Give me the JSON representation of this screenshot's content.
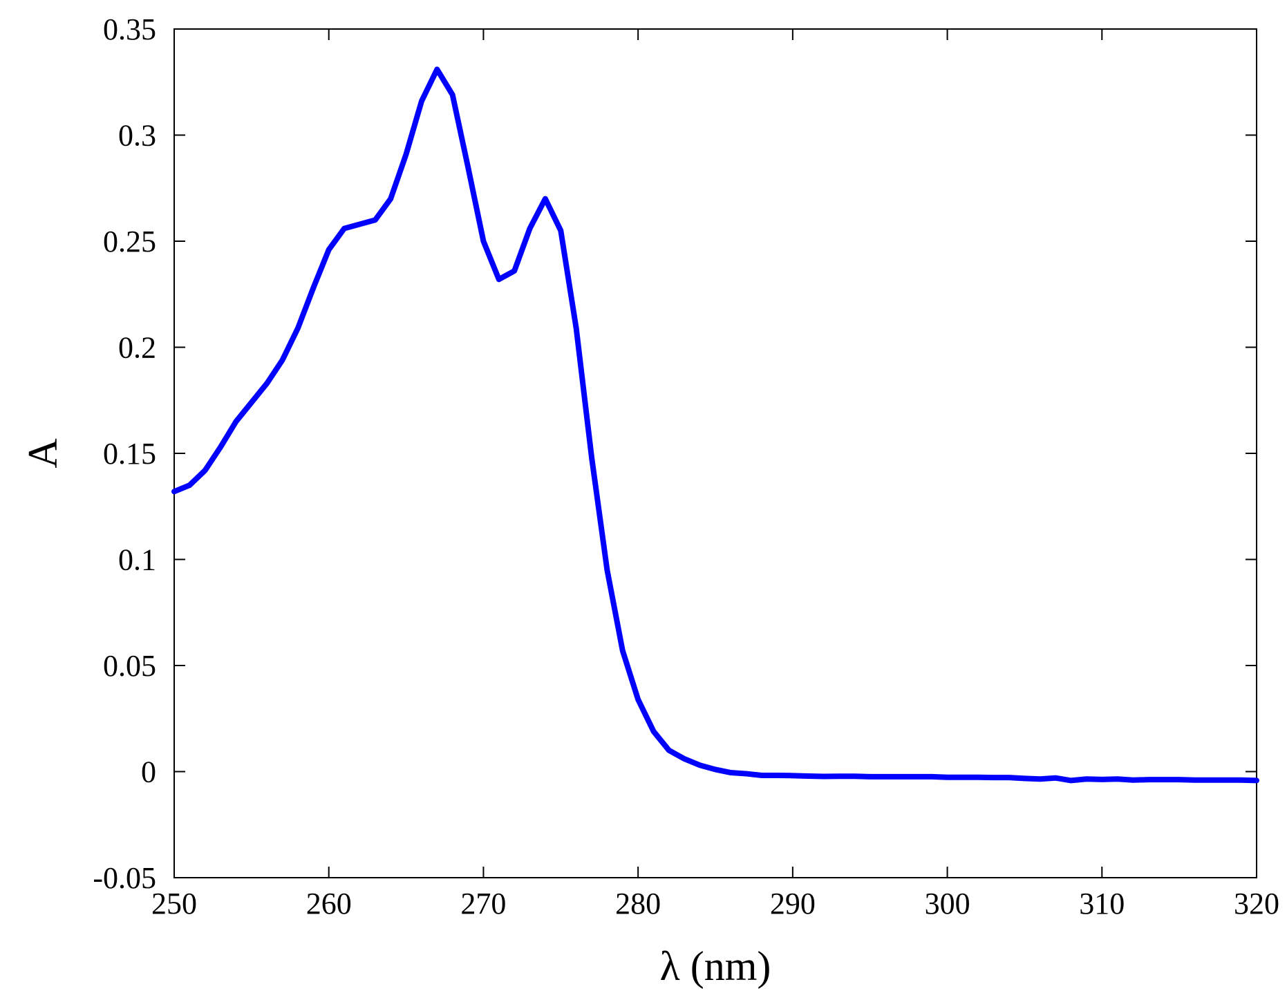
{
  "chart_data": {
    "type": "line",
    "xlabel": "λ (nm)",
    "ylabel": "A",
    "xlim": [
      250,
      320
    ],
    "ylim": [
      -0.05,
      0.35
    ],
    "xticks": [
      250,
      260,
      270,
      280,
      290,
      300,
      310,
      320
    ],
    "yticks": [
      -0.05,
      0,
      0.05,
      0.1,
      0.15,
      0.2,
      0.25,
      0.3,
      0.35
    ],
    "xtick_labels": [
      "250",
      "260",
      "270",
      "280",
      "290",
      "300",
      "310",
      "320"
    ],
    "ytick_labels": [
      "-0.05",
      "0",
      "0.05",
      "0.1",
      "0.15",
      "0.2",
      "0.25",
      "0.3",
      "0.35"
    ],
    "grid": false,
    "legend": "none",
    "line_color": "#0000ff",
    "series": [
      {
        "x": [
          250,
          251,
          252,
          253,
          254,
          255,
          256,
          257,
          258,
          259,
          260,
          261,
          262,
          263,
          264,
          265,
          266,
          267,
          268,
          269,
          270,
          271,
          272,
          273,
          274,
          275,
          276,
          277,
          278,
          279,
          280,
          281,
          282,
          283,
          284,
          285,
          286,
          287,
          288,
          289,
          290,
          291,
          292,
          293,
          294,
          295,
          296,
          297,
          298,
          299,
          300,
          301,
          302,
          303,
          304,
          305,
          306,
          307,
          308,
          309,
          310,
          311,
          312,
          313,
          314,
          315,
          316,
          317,
          318,
          319,
          320
        ],
        "values": [
          0.132,
          0.135,
          0.142,
          0.153,
          0.165,
          0.174,
          0.183,
          0.194,
          0.209,
          0.228,
          0.246,
          0.256,
          0.258,
          0.26,
          0.27,
          0.291,
          0.316,
          0.331,
          0.319,
          0.285,
          0.25,
          0.232,
          0.236,
          0.256,
          0.27,
          0.255,
          0.209,
          0.148,
          0.095,
          0.057,
          0.034,
          0.019,
          0.01,
          0.006,
          0.003,
          0.001,
          -0.0005,
          -0.001,
          -0.0018,
          -0.0018,
          -0.0019,
          -0.0021,
          -0.0023,
          -0.0022,
          -0.0022,
          -0.0024,
          -0.0024,
          -0.0024,
          -0.0024,
          -0.0024,
          -0.0027,
          -0.0027,
          -0.0027,
          -0.0028,
          -0.0028,
          -0.0032,
          -0.0035,
          -0.003,
          -0.0042,
          -0.0035,
          -0.0037,
          -0.0035,
          -0.004,
          -0.0038,
          -0.0038,
          -0.0038,
          -0.004,
          -0.004,
          -0.004,
          -0.004,
          -0.0042
        ]
      }
    ]
  }
}
